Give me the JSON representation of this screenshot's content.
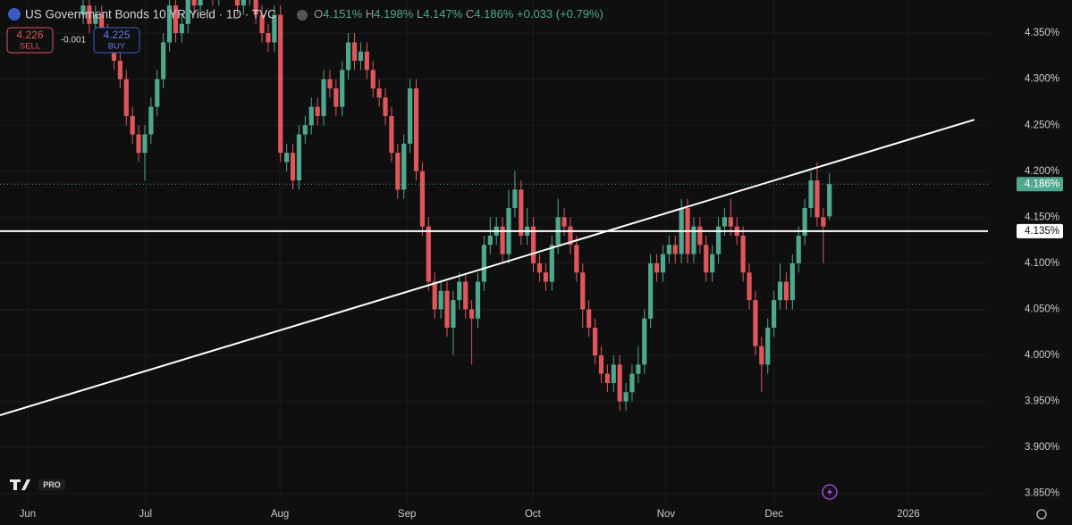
{
  "chart_data": {
    "type": "candlestick",
    "title": "US Government Bonds 10 YR Yield · 1D · TVC",
    "ohlc_legend": [
      {
        "label": "O",
        "value": "4.151%"
      },
      {
        "label": "H",
        "value": "4.198%"
      },
      {
        "label": "L",
        "value": "4.147%"
      },
      {
        "label": "C",
        "value": "4.186%"
      }
    ],
    "change": "+0.033 (+0.79%)",
    "trade": {
      "sell": {
        "price": "4.226",
        "label": "SELL"
      },
      "spread": "-0.001",
      "buy": {
        "price": "4.225",
        "label": "BUY"
      }
    },
    "logo": "PRO",
    "up_color": "#4fa88e",
    "down_color": "#e0565b",
    "open": [
      4.37,
      4.38,
      4.36,
      4.37,
      4.35,
      4.34,
      4.32,
      4.3,
      4.26,
      4.24,
      4.22,
      4.24,
      4.27,
      4.3,
      4.34,
      4.38,
      4.35,
      4.36,
      4.39,
      4.38,
      4.4,
      4.41,
      4.39,
      4.4,
      4.42,
      4.41,
      4.38,
      4.39,
      4.4,
      4.37,
      4.35,
      4.34,
      4.37,
      4.21,
      4.22,
      4.19,
      4.24,
      4.25,
      4.27,
      4.26,
      4.3,
      4.29,
      4.27,
      4.31,
      4.34,
      4.32,
      4.33,
      4.31,
      4.29,
      4.28,
      4.26,
      4.22,
      4.18,
      4.23,
      4.29,
      4.2,
      4.14,
      4.08,
      4.05,
      4.07,
      4.03,
      4.06,
      4.08,
      4.05,
      4.04,
      4.08,
      4.12,
      4.13,
      4.14,
      4.11,
      4.16,
      4.18,
      4.13,
      4.14,
      4.1,
      4.09,
      4.08,
      4.12,
      4.15,
      4.14,
      4.12,
      4.09,
      4.05,
      4.03,
      4.0,
      3.98,
      3.97,
      3.99,
      3.95,
      3.96,
      3.98,
      3.99,
      4.04,
      4.1,
      4.09,
      4.11,
      4.12,
      4.11,
      4.16,
      4.11,
      4.14,
      4.12,
      4.09,
      4.11,
      4.14,
      4.15,
      4.14,
      4.13,
      4.09,
      4.06,
      4.01,
      3.99,
      4.03,
      4.06,
      4.08,
      4.06,
      4.1,
      4.13,
      4.16,
      4.19,
      4.15,
      4.151
    ],
    "high": [
      4.39,
      4.39,
      4.38,
      4.38,
      4.36,
      4.35,
      4.33,
      4.31,
      4.27,
      4.25,
      4.25,
      4.28,
      4.31,
      4.35,
      4.39,
      4.39,
      4.37,
      4.4,
      4.4,
      4.41,
      4.42,
      4.42,
      4.41,
      4.43,
      4.43,
      4.42,
      4.4,
      4.41,
      4.41,
      4.38,
      4.36,
      4.38,
      4.38,
      4.23,
      4.23,
      4.25,
      4.26,
      4.28,
      4.28,
      4.31,
      4.31,
      4.3,
      4.32,
      4.35,
      4.35,
      4.34,
      4.34,
      4.32,
      4.3,
      4.29,
      4.27,
      4.23,
      4.24,
      4.3,
      4.3,
      4.21,
      4.15,
      4.09,
      4.08,
      4.08,
      4.07,
      4.09,
      4.09,
      4.06,
      4.09,
      4.13,
      4.15,
      4.15,
      4.15,
      4.18,
      4.2,
      4.19,
      4.16,
      4.15,
      4.11,
      4.1,
      4.13,
      4.17,
      4.16,
      4.15,
      4.13,
      4.1,
      4.06,
      4.04,
      4.01,
      3.99,
      4.0,
      4.0,
      3.97,
      3.99,
      4.01,
      4.05,
      4.11,
      4.11,
      4.12,
      4.13,
      4.13,
      4.17,
      4.17,
      4.15,
      4.15,
      4.13,
      4.12,
      4.15,
      4.16,
      4.17,
      4.15,
      4.14,
      4.1,
      4.07,
      4.02,
      4.04,
      4.07,
      4.1,
      4.09,
      4.11,
      4.14,
      4.17,
      4.2,
      4.21,
      4.16,
      4.198
    ],
    "low": [
      4.36,
      4.35,
      4.35,
      4.34,
      4.33,
      4.31,
      4.29,
      4.25,
      4.23,
      4.21,
      4.19,
      4.23,
      4.26,
      4.29,
      4.33,
      4.34,
      4.34,
      4.35,
      4.37,
      4.37,
      4.39,
      4.38,
      4.38,
      4.39,
      4.4,
      4.37,
      4.37,
      4.38,
      4.36,
      4.34,
      4.33,
      4.33,
      4.21,
      4.2,
      4.18,
      4.18,
      4.23,
      4.24,
      4.25,
      4.25,
      4.28,
      4.26,
      4.26,
      4.3,
      4.31,
      4.31,
      4.3,
      4.28,
      4.27,
      4.25,
      4.21,
      4.17,
      4.17,
      4.22,
      4.19,
      4.13,
      4.07,
      4.04,
      4.04,
      4.02,
      4.0,
      4.05,
      4.04,
      3.99,
      4.03,
      4.07,
      4.11,
      4.12,
      4.1,
      4.1,
      4.15,
      4.12,
      4.12,
      4.09,
      4.08,
      4.07,
      4.07,
      4.11,
      4.13,
      4.11,
      4.08,
      4.03,
      4.02,
      3.99,
      3.97,
      3.96,
      3.96,
      3.94,
      3.94,
      3.95,
      3.97,
      3.98,
      4.03,
      4.08,
      4.08,
      4.1,
      4.1,
      4.1,
      4.1,
      4.1,
      4.11,
      4.08,
      4.08,
      4.1,
      4.13,
      4.13,
      4.12,
      4.08,
      4.05,
      4.0,
      3.96,
      3.98,
      4.02,
      4.05,
      4.05,
      4.05,
      4.09,
      4.12,
      4.15,
      4.14,
      4.1,
      4.147
    ],
    "close": [
      4.38,
      4.36,
      4.37,
      4.35,
      4.34,
      4.32,
      4.3,
      4.26,
      4.24,
      4.22,
      4.24,
      4.27,
      4.3,
      4.34,
      4.38,
      4.35,
      4.36,
      4.39,
      4.38,
      4.4,
      4.41,
      4.39,
      4.4,
      4.42,
      4.41,
      4.38,
      4.39,
      4.4,
      4.37,
      4.35,
      4.34,
      4.37,
      4.22,
      4.22,
      4.19,
      4.24,
      4.25,
      4.27,
      4.26,
      4.3,
      4.29,
      4.27,
      4.31,
      4.34,
      4.32,
      4.33,
      4.31,
      4.29,
      4.28,
      4.26,
      4.22,
      4.18,
      4.23,
      4.29,
      4.2,
      4.14,
      4.08,
      4.05,
      4.07,
      4.03,
      4.06,
      4.08,
      4.05,
      4.04,
      4.08,
      4.12,
      4.13,
      4.14,
      4.11,
      4.16,
      4.18,
      4.13,
      4.14,
      4.1,
      4.09,
      4.08,
      4.12,
      4.15,
      4.14,
      4.12,
      4.09,
      4.05,
      4.03,
      4.0,
      3.98,
      3.97,
      3.99,
      3.95,
      3.96,
      3.98,
      3.99,
      4.04,
      4.1,
      4.09,
      4.11,
      4.12,
      4.11,
      4.16,
      4.11,
      4.14,
      4.12,
      4.09,
      4.11,
      4.14,
      4.15,
      4.14,
      4.13,
      4.09,
      4.06,
      4.01,
      3.99,
      4.03,
      4.06,
      4.08,
      4.06,
      4.1,
      4.13,
      4.16,
      4.19,
      4.15,
      4.14,
      4.186
    ],
    "xlim": [
      -13.48,
      146.7
    ],
    "xticks": [
      {
        "value": -9,
        "label": "Jun"
      },
      {
        "value": 10.1,
        "label": "Jul"
      },
      {
        "value": 31.9,
        "label": "Aug"
      },
      {
        "value": 52.5,
        "label": "Sep"
      },
      {
        "value": 72.9,
        "label": "Oct"
      },
      {
        "value": 94.5,
        "label": "Nov"
      },
      {
        "value": 112,
        "label": "Dec"
      },
      {
        "value": 133.8,
        "label": "2026"
      }
    ],
    "ylim": [
      3.84,
      4.386
    ],
    "yticks": [
      {
        "value": 3.85,
        "label": "3.850%"
      },
      {
        "value": 3.9,
        "label": "3.900%"
      },
      {
        "value": 3.95,
        "label": "3.950%"
      },
      {
        "value": 4.0,
        "label": "4.000%"
      },
      {
        "value": 4.05,
        "label": "4.050%"
      },
      {
        "value": 4.1,
        "label": "4.100%"
      },
      {
        "value": 4.15,
        "label": "4.150%"
      },
      {
        "value": 4.2,
        "label": "4.200%"
      },
      {
        "value": 4.25,
        "label": "4.250%"
      },
      {
        "value": 4.3,
        "label": "4.300%"
      },
      {
        "value": 4.35,
        "label": "4.350%"
      }
    ],
    "grid": true,
    "trend_line": {
      "x": [
        -13.48,
        144.5
      ],
      "y": [
        3.935,
        4.256
      ],
      "color": "#ffffff"
    },
    "horizontal_line": {
      "value": 4.135,
      "label": "4.135%",
      "color": "#ffffff"
    },
    "last_price": {
      "value": 4.186,
      "label": "4.186%"
    }
  }
}
